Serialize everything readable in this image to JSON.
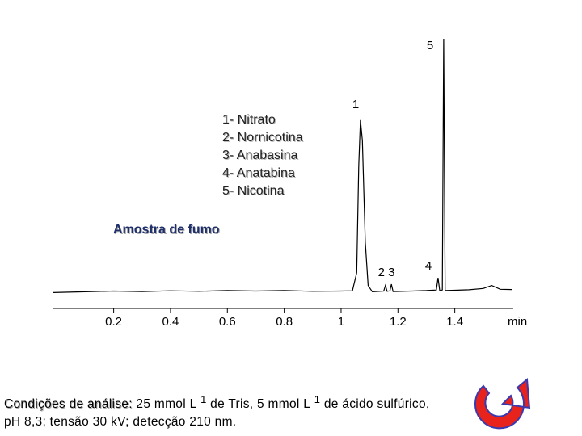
{
  "chart_data": {
    "type": "line",
    "x": [
      -0.014,
      0.1,
      0.2,
      0.3,
      0.4,
      0.5,
      0.6,
      0.7,
      0.8,
      0.9,
      1.0,
      1.04,
      1.055,
      1.062,
      1.068,
      1.075,
      1.085,
      1.095,
      1.11,
      1.15,
      1.156,
      1.162,
      1.172,
      1.177,
      1.183,
      1.25,
      1.3,
      1.335,
      1.341,
      1.347,
      1.356,
      1.361,
      1.366,
      1.4,
      1.45,
      1.5,
      1.53,
      1.56,
      1.6
    ],
    "values": [
      0.2,
      0.5,
      0.8,
      0.6,
      0.9,
      0.7,
      1.0,
      0.8,
      1.0,
      0.7,
      0.8,
      0.9,
      8,
      50,
      68,
      60,
      20,
      3,
      0.5,
      0.8,
      3,
      0.7,
      0.9,
      3.5,
      0.6,
      0.8,
      1.0,
      1.2,
      6,
      1.0,
      1.2,
      100,
      1.0,
      1.1,
      1.3,
      1.8,
      3,
      1.5,
      1.4
    ],
    "color": "#000000",
    "xlim": [
      -0.015,
      1.62
    ],
    "ylim": [
      0,
      100
    ],
    "xticks": [
      0.2,
      0.4,
      0.6,
      0.8,
      1,
      1.2,
      1.4
    ],
    "xlabel": "min",
    "peak_labels": [
      "5",
      "1",
      "2 3",
      "4"
    ],
    "peak_key": [
      "1- Nitrato",
      "2- Nornicotina",
      "3- Anabasina",
      "4- Anatabina",
      "5- Nicotina"
    ],
    "sample_label": "Amostra de fumo"
  },
  "caption": {
    "lead": "Condições de análise:",
    "parts": [
      " 25 mmol L",
      "-1",
      " de Tris, 5 mmol L",
      "-1",
      " de ácido sulfúrico, pH 8,3; tensão 30 kV; detecção 210 nm."
    ]
  }
}
